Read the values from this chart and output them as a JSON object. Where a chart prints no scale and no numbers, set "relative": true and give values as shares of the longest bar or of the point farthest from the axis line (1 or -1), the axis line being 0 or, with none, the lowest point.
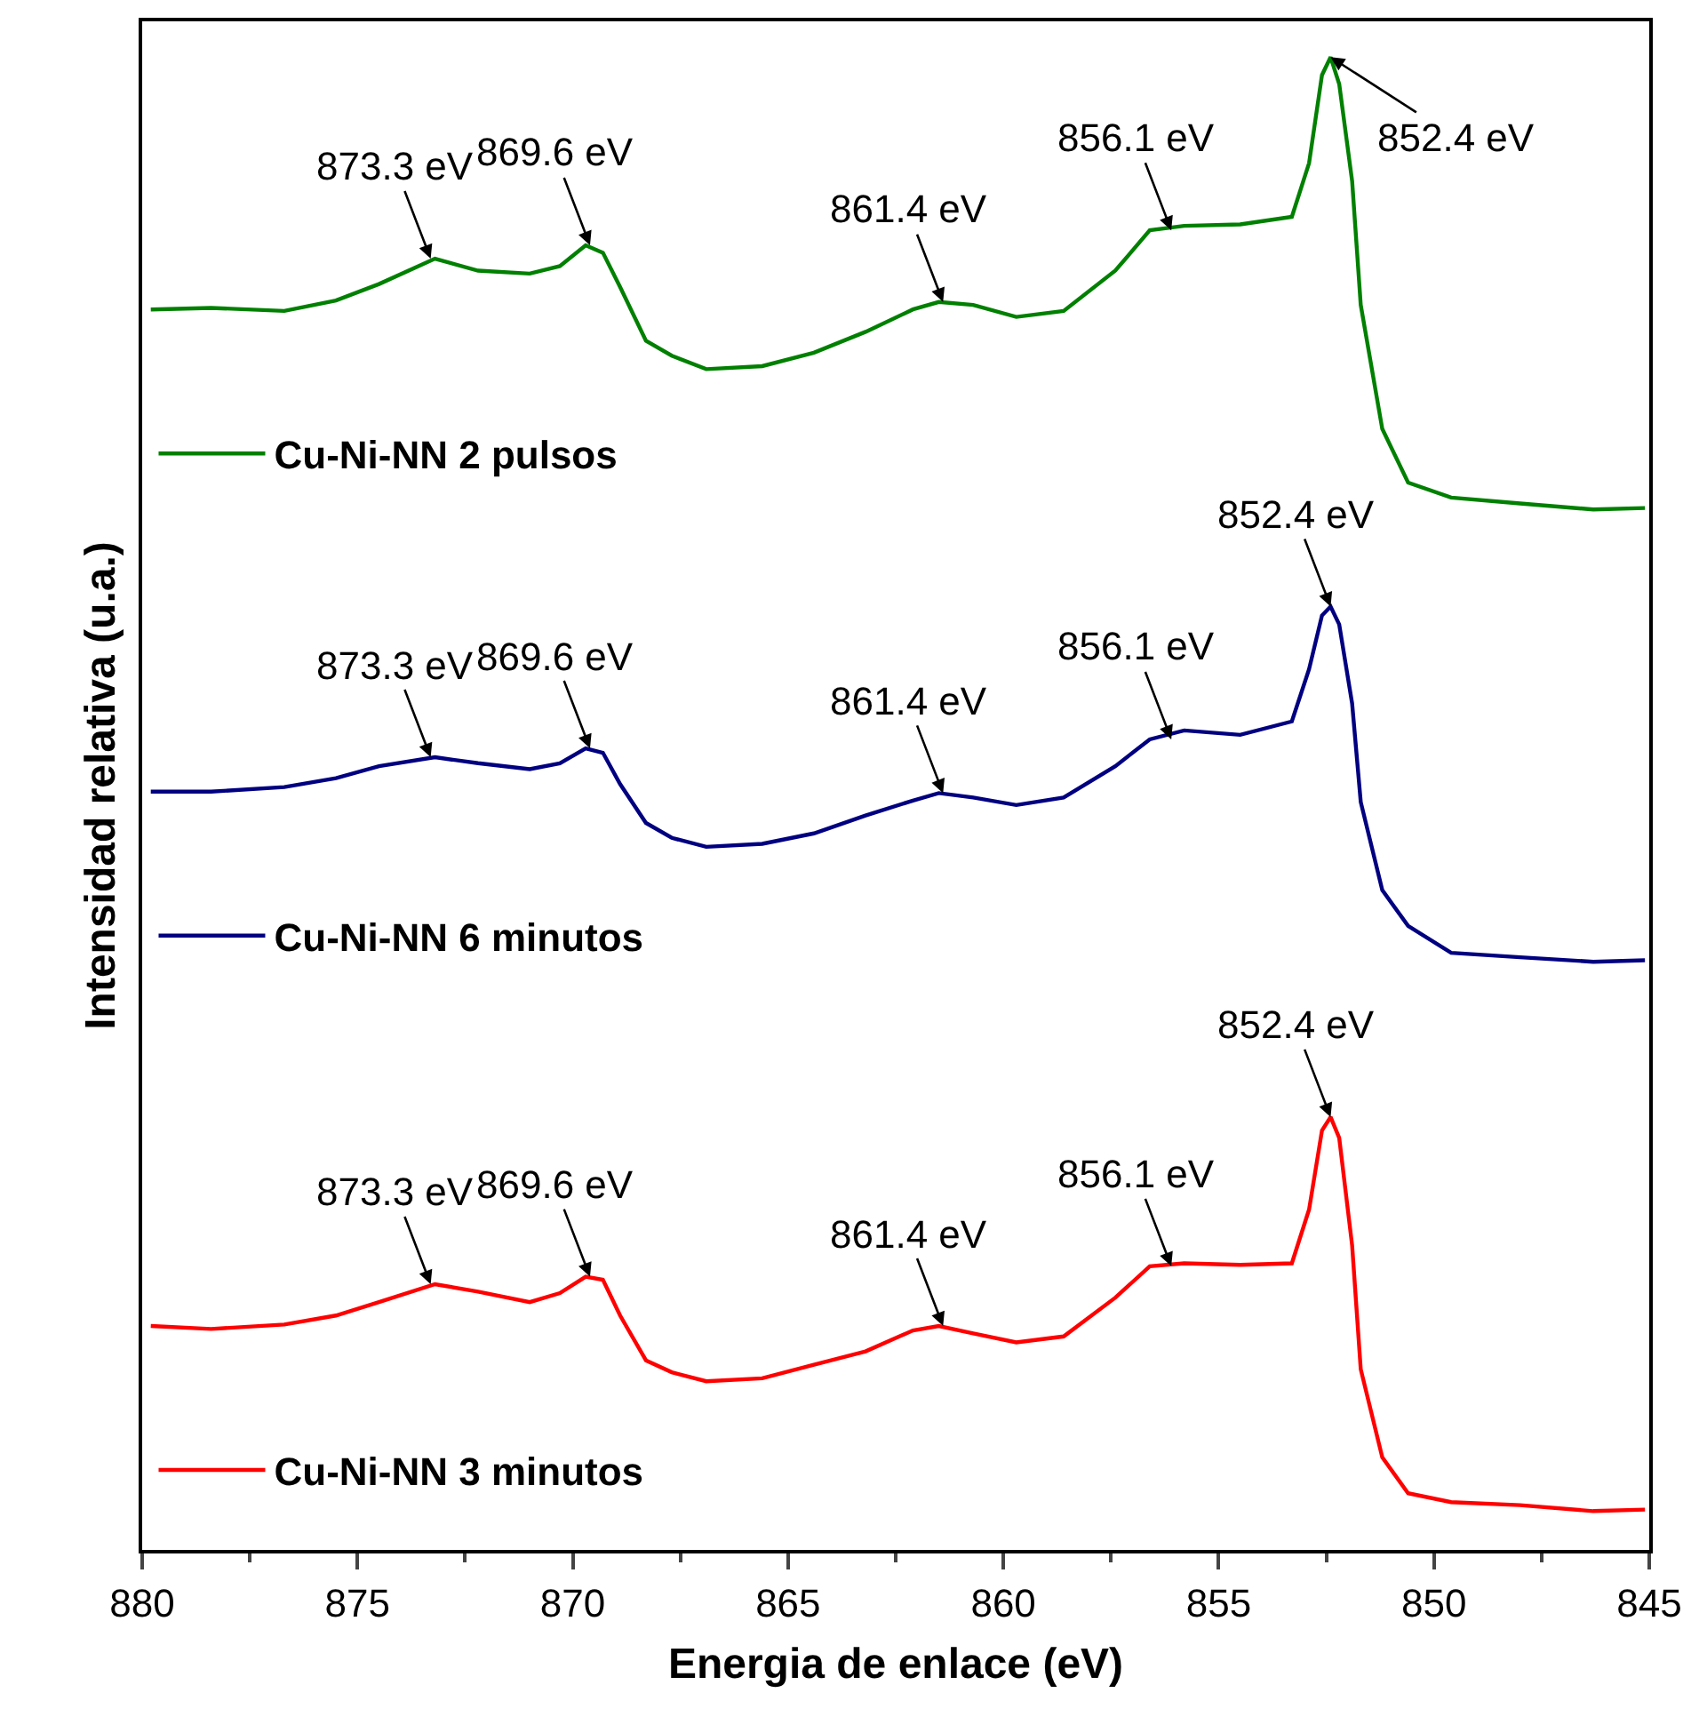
{
  "chart_data": {
    "type": "line",
    "relative": true,
    "xlabel": "Energia de enlace (eV)",
    "ylabel": "Intensidad relativa (u.a.)",
    "xlim": [
      880,
      845
    ],
    "xticks": [
      880,
      875,
      870,
      865,
      860,
      855,
      850,
      845
    ],
    "legend": "left",
    "grid": false,
    "marker": "none",
    "line_style": "solid",
    "x": [
      879.8,
      878.4,
      876.7,
      875.5,
      874.5,
      873.2,
      872.2,
      871.0,
      870.3,
      869.7,
      869.3,
      868.9,
      868.3,
      867.7,
      866.9,
      865.6,
      864.4,
      863.2,
      862.1,
      861.5,
      860.7,
      859.7,
      858.6,
      857.4,
      856.6,
      855.8,
      854.5,
      853.3,
      852.9,
      852.6,
      852.4,
      852.2,
      851.9,
      851.7,
      851.2,
      850.6,
      849.6,
      848.0,
      846.3,
      845.1
    ],
    "series": [
      {
        "name": "Cu-Ni-NN 2 pulsos",
        "color": "#008000",
        "values": [
          0.831,
          0.832,
          0.83,
          0.837,
          0.848,
          0.865,
          0.857,
          0.855,
          0.86,
          0.874,
          0.869,
          0.846,
          0.81,
          0.8,
          0.791,
          0.793,
          0.802,
          0.816,
          0.831,
          0.836,
          0.834,
          0.826,
          0.83,
          0.857,
          0.884,
          0.887,
          0.888,
          0.893,
          0.929,
          0.988,
          1,
          0.982,
          0.917,
          0.834,
          0.751,
          0.715,
          0.705,
          0.701,
          0.697,
          0.698
        ]
      },
      {
        "name": "Cu-Ni-NN 6 minutos",
        "color": "#000080",
        "values": [
          0.508,
          0.508,
          0.511,
          0.517,
          0.525,
          0.531,
          0.527,
          0.523,
          0.527,
          0.537,
          0.534,
          0.513,
          0.487,
          0.477,
          0.471,
          0.473,
          0.48,
          0.492,
          0.502,
          0.507,
          0.504,
          0.499,
          0.504,
          0.525,
          0.543,
          0.549,
          0.546,
          0.555,
          0.59,
          0.626,
          0.632,
          0.62,
          0.567,
          0.501,
          0.442,
          0.418,
          0.4,
          0.397,
          0.394,
          0.395
        ]
      },
      {
        "name": "Cu-Ni-NN 3 minutos",
        "color": "#ff0000",
        "values": [
          0.15,
          0.148,
          0.151,
          0.157,
          0.166,
          0.178,
          0.173,
          0.166,
          0.172,
          0.183,
          0.181,
          0.157,
          0.127,
          0.119,
          0.113,
          0.115,
          0.124,
          0.133,
          0.147,
          0.15,
          0.145,
          0.139,
          0.143,
          0.169,
          0.19,
          0.192,
          0.191,
          0.192,
          0.228,
          0.281,
          0.29,
          0.276,
          0.204,
          0.121,
          0.062,
          0.038,
          0.032,
          0.03,
          0.026,
          0.027
        ]
      }
    ],
    "annotations": [
      {
        "text": "873.3 eV",
        "x": 873.3,
        "y": 0.865
      },
      {
        "text": "869.6 eV",
        "x": 869.6,
        "y": 0.874
      },
      {
        "text": "861.4 eV",
        "x": 861.4,
        "y": 0.836
      },
      {
        "text": "856.1 eV",
        "x": 856.1,
        "y": 0.884
      },
      {
        "text": "852.4 eV",
        "x": 852.4,
        "y": 1
      },
      {
        "text": "873.3 eV",
        "x": 873.3,
        "y": 0.531
      },
      {
        "text": "869.6 eV",
        "x": 869.6,
        "y": 0.537
      },
      {
        "text": "861.4 eV",
        "x": 861.4,
        "y": 0.507
      },
      {
        "text": "856.1 eV",
        "x": 856.1,
        "y": 0.543
      },
      {
        "text": "852.4 eV",
        "x": 852.4,
        "y": 0.632
      },
      {
        "text": "873.3 eV",
        "x": 873.3,
        "y": 0.178
      },
      {
        "text": "869.6 eV",
        "x": 869.6,
        "y": 0.183
      },
      {
        "text": "861.4 eV",
        "x": 861.4,
        "y": 0.15
      },
      {
        "text": "856.1 eV",
        "x": 856.1,
        "y": 0.19
      },
      {
        "text": "852.4 eV",
        "x": 852.4,
        "y": 0.29
      }
    ]
  }
}
